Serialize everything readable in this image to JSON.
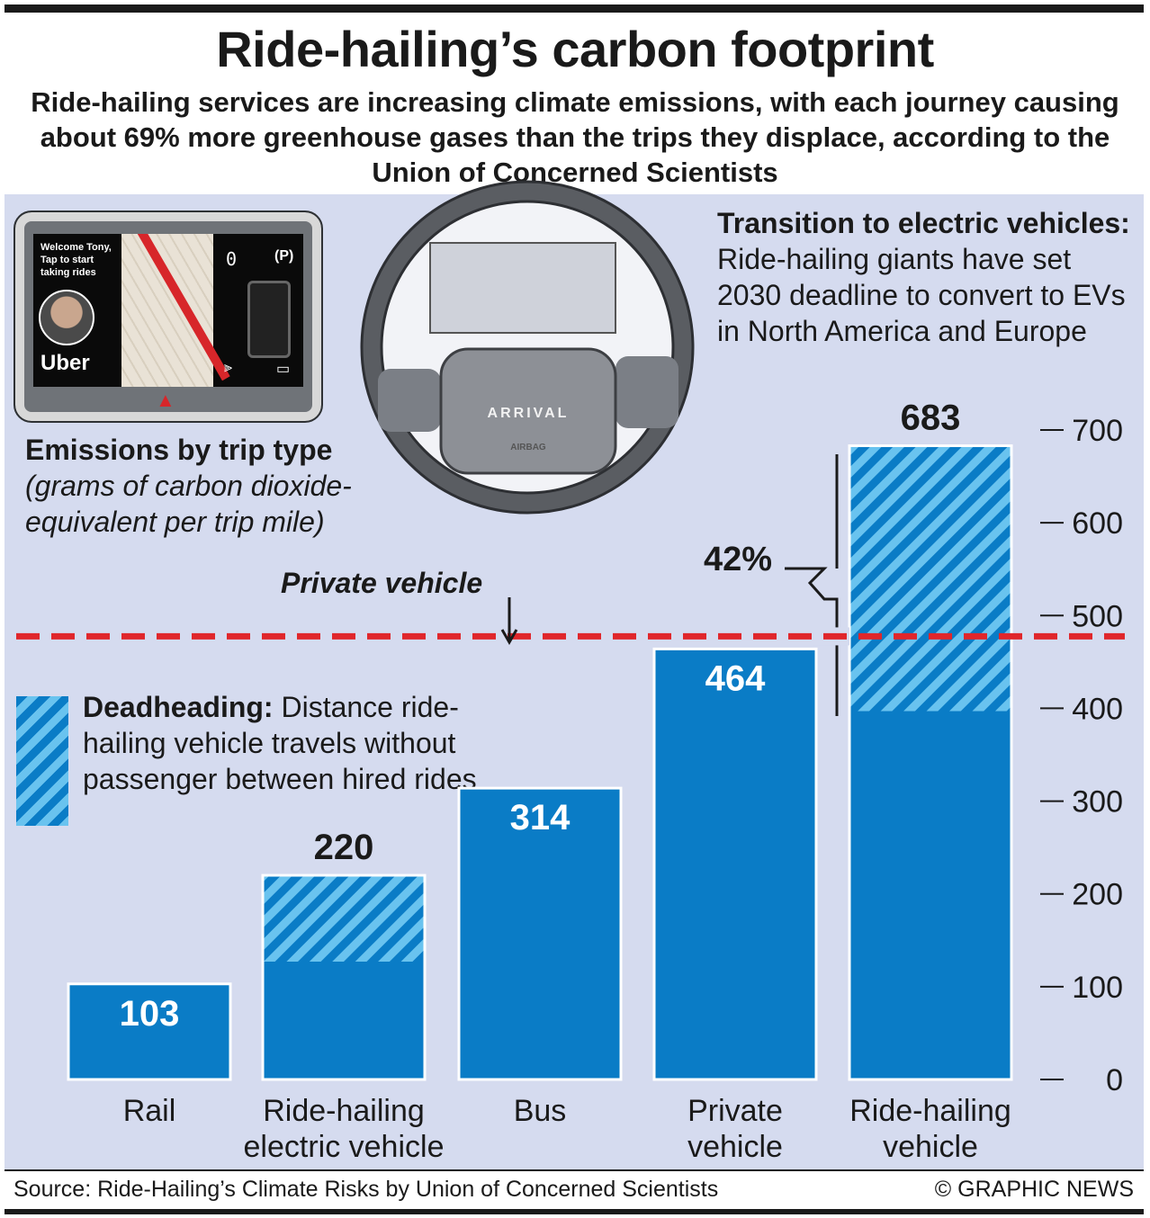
{
  "header": {
    "title": "Ride-hailing’s carbon footprint",
    "subtitle": "Ride-hailing services are increasing climate emissions, with each journey causing about 69% more greenhouse gases than the trips they displace, according to the Union of Concerned Scientists"
  },
  "ev_note": {
    "heading": "Transition to electric vehicles:",
    "body": " Ride-hailing giants have set 2030 deadline to convert to EVs in North America and Europe"
  },
  "emissions": {
    "heading": "Emissions by trip type",
    "unit": " (grams of carbon dioxide-equivalent per trip mile)"
  },
  "deadheading": {
    "heading": "Deadheading:",
    "body": " Distance ride-hailing vehicle travels without passenger between hired rides"
  },
  "reference": {
    "label": "Private vehicle",
    "value": 464
  },
  "annotation": {
    "label": "42%"
  },
  "screen": {
    "welcome": "Welcome Tony, Tap to start taking rides",
    "brand": "Uber",
    "speed": "0",
    "park": "(P)"
  },
  "wheel": {
    "brand": "ARRIVAL",
    "airbag": "AIRBAG"
  },
  "footer": {
    "source": "Source: Ride-Hailing’s Climate Risks by Union of Concerned Scientists",
    "credit": "© GRAPHIC NEWS"
  },
  "colors": {
    "bar": "#0a7cc6",
    "hatch_light": "#69c3ef",
    "reference_line": "#e0262b",
    "panel": "#d5dbef"
  },
  "chart_data": {
    "type": "bar",
    "ylim": [
      0,
      700
    ],
    "yticks": [
      0,
      100,
      200,
      300,
      400,
      500,
      600,
      700
    ],
    "categories": [
      {
        "label1": "Rail",
        "label2": "",
        "value": 103,
        "deadheading": 0
      },
      {
        "label1": "Ride-hailing",
        "label2": "electric vehicle",
        "value": 220,
        "deadheading": 93
      },
      {
        "label1": "Bus",
        "label2": "",
        "value": 314,
        "deadheading": 0
      },
      {
        "label1": "Private",
        "label2": "vehicle",
        "value": 464,
        "deadheading": 0
      },
      {
        "label1": "Ride-hailing",
        "label2": "vehicle",
        "value": 683,
        "deadheading": 286
      }
    ]
  }
}
